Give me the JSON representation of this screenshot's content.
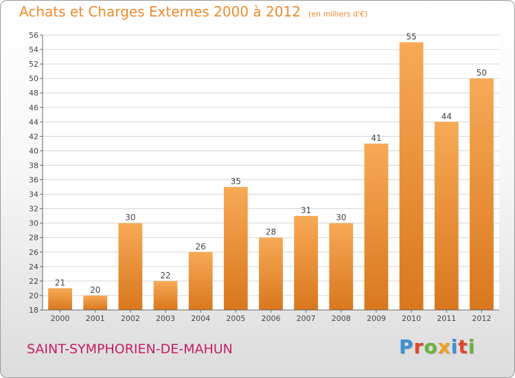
{
  "header": {
    "title": "Achats et Charges Externes 2000 à 2012",
    "unit": "(en milliers d'€)"
  },
  "footer": {
    "commune": "SAINT-SYMPHORIEN-DE-MAHUN",
    "logo_letters": [
      {
        "char": "P",
        "color": "#3a8fd6"
      },
      {
        "char": "r",
        "color": "#e0452c"
      },
      {
        "char": "o",
        "color": "#6bb33d"
      },
      {
        "char": "x",
        "color": "#f0a020"
      },
      {
        "char": "i",
        "color": "#3a8fd6"
      },
      {
        "char": "t",
        "color": "#e0452c"
      },
      {
        "char": "i",
        "color": "#6bb33d"
      }
    ]
  },
  "colors": {
    "bar_top": "#f7a955",
    "bar_bottom": "#d9771e",
    "grid": "#d5d5d5",
    "axis": "#666666",
    "text": "#444444",
    "title": "#ee8a2c",
    "commune": "#c41e64"
  },
  "chart_data": {
    "type": "bar",
    "categories": [
      "2000",
      "2001",
      "2002",
      "2003",
      "2004",
      "2005",
      "2006",
      "2007",
      "2008",
      "2009",
      "2010",
      "2011",
      "2012"
    ],
    "values": [
      21,
      20,
      30,
      22,
      26,
      35,
      28,
      31,
      30,
      41,
      55,
      44,
      50
    ],
    "value_labels": [
      "21",
      "20",
      "30",
      "22",
      "26",
      "35",
      "28",
      "31",
      "30",
      "41",
      "55",
      "44",
      "50"
    ],
    "ylim": [
      18,
      56
    ],
    "yticks": [
      "18",
      "20",
      "22",
      "24",
      "26",
      "28",
      "30",
      "32",
      "34",
      "36",
      "38",
      "40",
      "42",
      "44",
      "46",
      "48",
      "50",
      "52",
      "54",
      "56"
    ],
    "grid": true,
    "legend": "none"
  }
}
